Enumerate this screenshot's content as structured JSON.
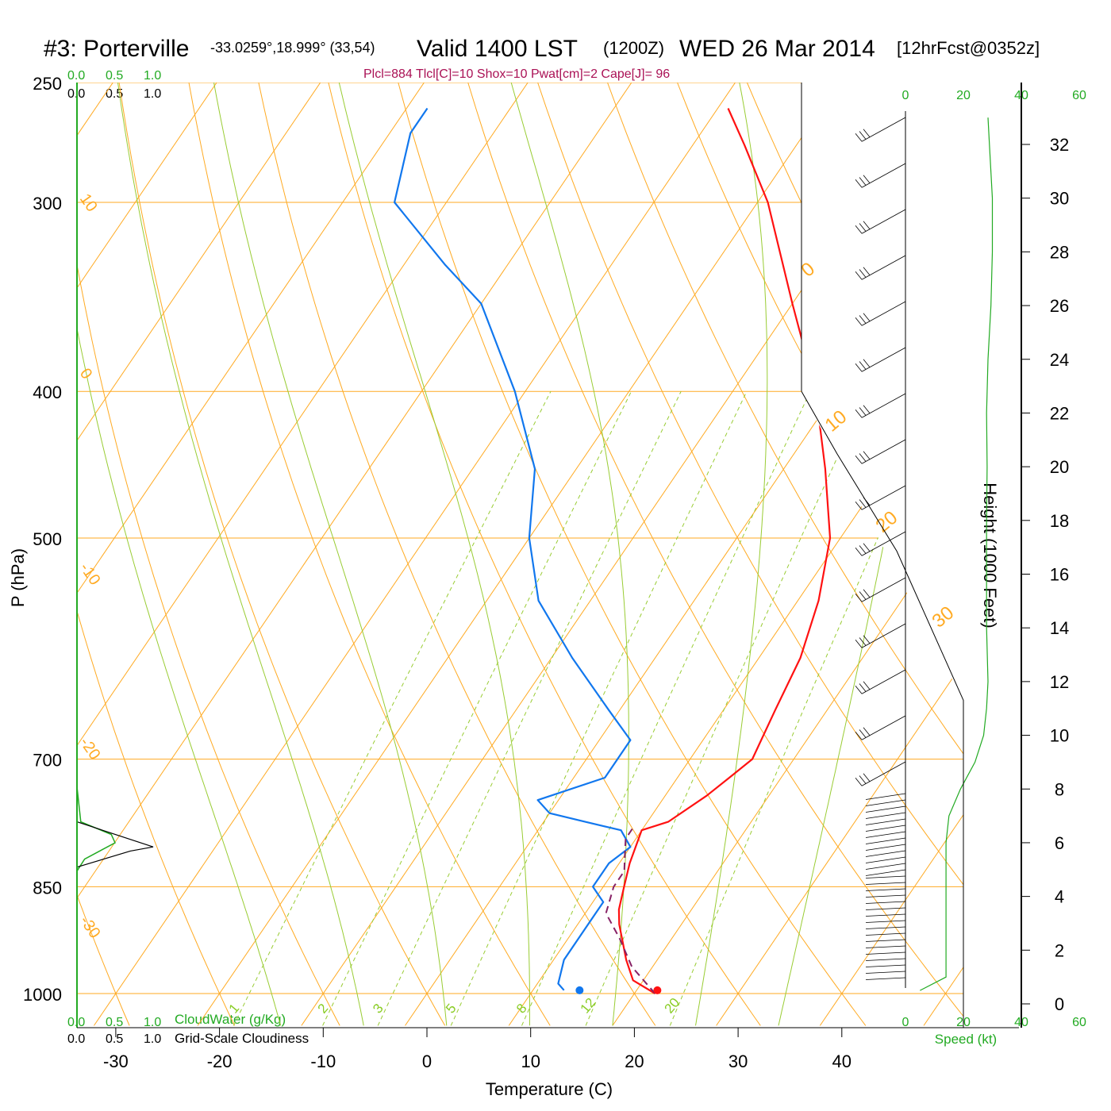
{
  "title": {
    "station": "#3: Porterville",
    "coords": "-33.0259°,18.999° (33,54)",
    "valid": "Valid 1400 LST",
    "zulu": "(1200Z)",
    "date": "WED 26 Mar 2014",
    "forecast": "[12hrFcst@0352z]"
  },
  "params": "Plcl=884 Tlcl[C]=10 Shox=10 Pwat[cm]=2 Cape[J]= 96",
  "cloud_scale": {
    "top_green": [
      "0.0",
      "0.5",
      "1.0"
    ],
    "top_black": [
      "0.0",
      "0.5",
      "1.0"
    ],
    "bottom_green": [
      "0.0",
      "0.5",
      "1.0"
    ],
    "bottom_black": [
      "0.0",
      "0.5",
      "1.0"
    ],
    "cloudwater_label": "CloudWater (g/Kg)",
    "cloudiness_label": "Grid-Scale Cloudiness"
  },
  "speed_scale": {
    "ticks": [
      "0",
      "20",
      "40",
      "60"
    ],
    "label": "Speed (kt)"
  },
  "colors": {
    "temperature": "#ff1111",
    "dewpoint": "#1177ee",
    "isotherm": "#ffaa22",
    "dry_adiabat": "#ffaa22",
    "moist_adiabat": "#99cc33",
    "mixing_ratio": "#99cc33",
    "parcel": "#882266",
    "green_axis": "#22aa22"
  },
  "chart_data": {
    "type": "line",
    "diagram": "skew-T log-P",
    "xlabel": "Temperature (C)",
    "ylabel": "P (hPa)",
    "y2label": "Height (1000 Feet)",
    "pressure_ticks": [
      250,
      300,
      400,
      500,
      700,
      850,
      1000
    ],
    "temperature_ticks": [
      -30,
      -20,
      -10,
      0,
      10,
      20,
      30,
      40
    ],
    "height_ticks": [
      0,
      2,
      4,
      6,
      8,
      10,
      12,
      14,
      16,
      18,
      20,
      22,
      24,
      26,
      28,
      30,
      32
    ],
    "isotherm_labels": [
      "10",
      "0",
      "-10",
      "-20",
      "-30"
    ],
    "adiabat_labels": [
      "0",
      "10",
      "20",
      "30"
    ],
    "mixing_ratio_labels": [
      "1",
      "2",
      "3",
      "5",
      "8",
      "12",
      "20"
    ],
    "series": [
      {
        "name": "Temperature",
        "points": [
          [
            1000,
            22
          ],
          [
            980,
            19
          ],
          [
            950,
            17
          ],
          [
            900,
            14
          ],
          [
            880,
            13
          ],
          [
            850,
            12
          ],
          [
            820,
            11
          ],
          [
            780,
            10
          ],
          [
            770,
            12
          ],
          [
            740,
            14
          ],
          [
            720,
            15
          ],
          [
            700,
            16
          ],
          [
            650,
            15
          ],
          [
            600,
            14
          ],
          [
            550,
            12
          ],
          [
            500,
            9
          ],
          [
            450,
            4
          ],
          [
            400,
            -2
          ],
          [
            350,
            -10
          ],
          [
            300,
            -19
          ],
          [
            275,
            -25
          ],
          [
            260,
            -29
          ]
        ]
      },
      {
        "name": "Dewpoint",
        "points": [
          [
            995,
            13
          ],
          [
            985,
            12
          ],
          [
            950,
            11
          ],
          [
            900,
            11
          ],
          [
            870,
            11
          ],
          [
            850,
            9
          ],
          [
            820,
            9
          ],
          [
            800,
            10
          ],
          [
            780,
            8
          ],
          [
            770,
            4
          ],
          [
            760,
            0
          ],
          [
            745,
            -2
          ],
          [
            720,
            3
          ],
          [
            700,
            3
          ],
          [
            680,
            3
          ],
          [
            650,
            -1
          ],
          [
            600,
            -8
          ],
          [
            550,
            -15
          ],
          [
            500,
            -20
          ],
          [
            450,
            -24
          ],
          [
            400,
            -31
          ],
          [
            350,
            -40
          ],
          [
            330,
            -46
          ],
          [
            300,
            -55
          ],
          [
            270,
            -58
          ],
          [
            260,
            -58
          ]
        ]
      }
    ],
    "parcel_points": [
      [
        1000,
        22
      ],
      [
        960,
        18
      ],
      [
        920,
        15
      ],
      [
        885,
        12
      ],
      [
        850,
        11
      ],
      [
        830,
        11
      ],
      [
        810,
        10
      ],
      [
        790,
        9
      ],
      [
        775,
        9
      ]
    ],
    "surface_markers": {
      "temperature": 22,
      "dewpoint": 14.5
    },
    "height_profile": {
      "label": "Height (1000 Feet)",
      "ticks_kft": [
        0,
        2,
        4,
        6,
        8,
        10,
        12,
        14,
        16,
        18,
        20,
        22,
        24,
        26,
        28,
        30,
        32
      ]
    },
    "wind_speed_profile_kt": [
      [
        0.5,
        5
      ],
      [
        1,
        14
      ],
      [
        2,
        14
      ],
      [
        3,
        14
      ],
      [
        4,
        14
      ],
      [
        5,
        14
      ],
      [
        6,
        14
      ],
      [
        7,
        15
      ],
      [
        8,
        19
      ],
      [
        9,
        24
      ],
      [
        10,
        27
      ],
      [
        11,
        28
      ],
      [
        12,
        28.5
      ],
      [
        14,
        28
      ],
      [
        16,
        28
      ],
      [
        18,
        28
      ],
      [
        20,
        28.2
      ],
      [
        22,
        28
      ],
      [
        24,
        28.5
      ],
      [
        26,
        29.5
      ],
      [
        28,
        30
      ],
      [
        30,
        30
      ],
      [
        32,
        29
      ],
      [
        33,
        28.5
      ]
    ],
    "cloudiness_profile": {
      "x_range": [
        0.0,
        1.0
      ],
      "cloudwater": [
        [
          730,
          0.0
        ],
        [
          770,
          0.05
        ],
        [
          785,
          0.45
        ],
        [
          795,
          0.5
        ],
        [
          815,
          0.1
        ],
        [
          830,
          0.0
        ]
      ],
      "gridscale": [
        [
          770,
          0.0
        ],
        [
          800,
          1.0
        ],
        [
          805,
          0.7
        ],
        [
          825,
          0.0
        ]
      ]
    }
  }
}
